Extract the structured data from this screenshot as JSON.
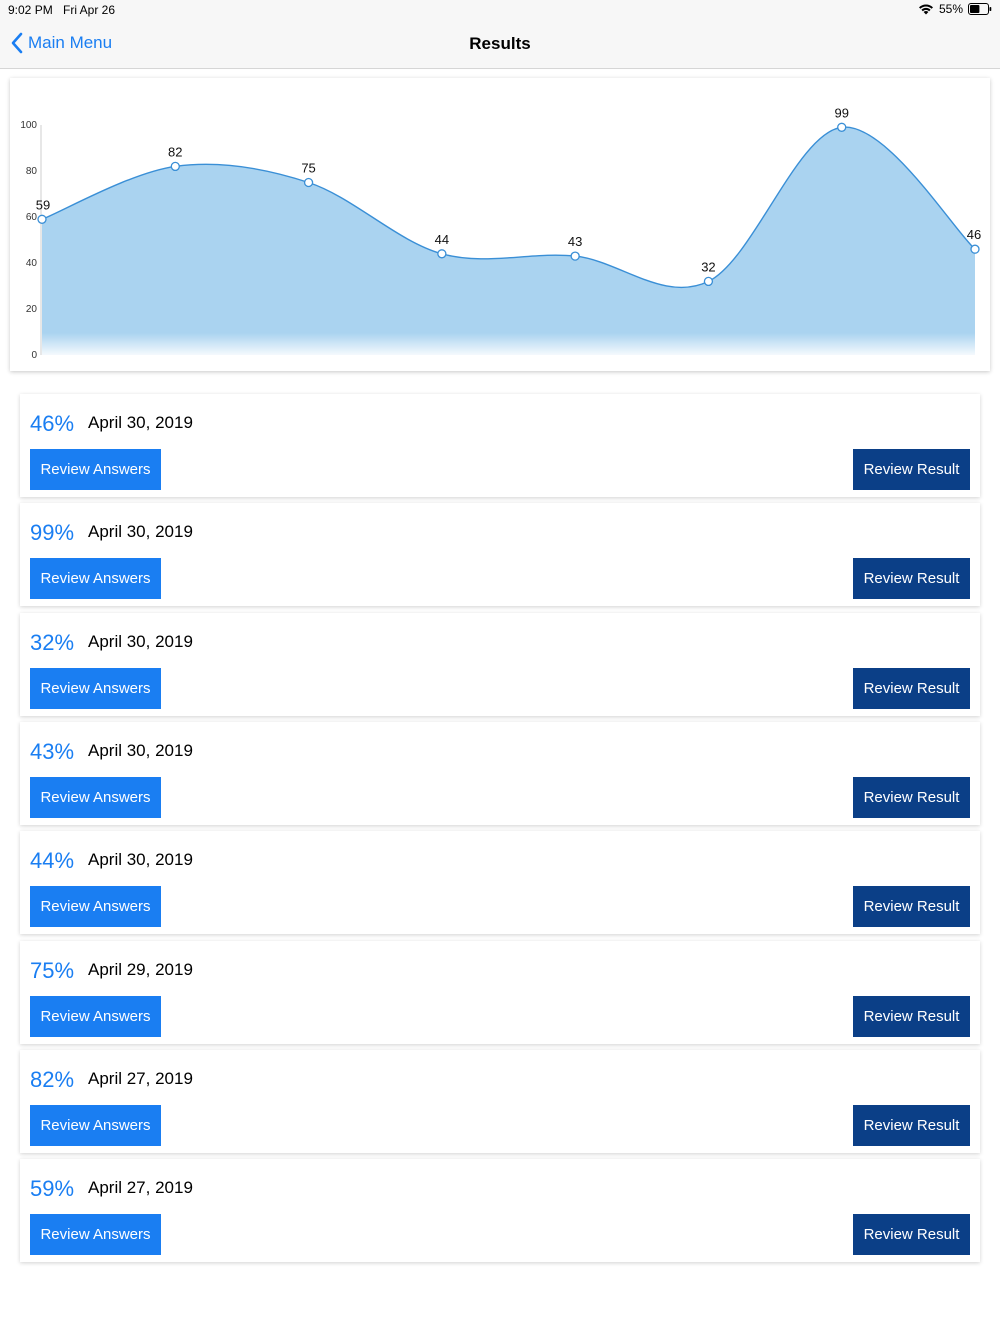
{
  "status_bar": {
    "time": "9:02 PM",
    "date": "Fri Apr 26",
    "battery": "55%",
    "battery_level": 0.55
  },
  "nav": {
    "back_label": "Main Menu",
    "title": "Results"
  },
  "colors": {
    "accent": "#1a7ef2",
    "dark_button": "#0b3f87",
    "chart_line": "#3a8fd6",
    "chart_fill": "#aad3f0"
  },
  "chart_data": {
    "type": "area",
    "title": "",
    "xlabel": "",
    "ylabel": "",
    "ylim": [
      0,
      100
    ],
    "yticks": [
      0,
      20,
      40,
      60,
      80,
      100
    ],
    "values": [
      59,
      82,
      75,
      44,
      43,
      32,
      99,
      46
    ],
    "data_labels": [
      "59",
      "82",
      "75",
      "44",
      "43",
      "32",
      "99",
      "46"
    ],
    "smooth": true,
    "grid": false,
    "legend": "none"
  },
  "results": [
    {
      "score": "46%",
      "date": "April 30, 2019",
      "answers_label": "Review Answers",
      "result_label": "Review Result"
    },
    {
      "score": "99%",
      "date": "April 30, 2019",
      "answers_label": "Review Answers",
      "result_label": "Review Result"
    },
    {
      "score": "32%",
      "date": "April 30, 2019",
      "answers_label": "Review Answers",
      "result_label": "Review Result"
    },
    {
      "score": "43%",
      "date": "April 30, 2019",
      "answers_label": "Review Answers",
      "result_label": "Review Result"
    },
    {
      "score": "44%",
      "date": "April 30, 2019",
      "answers_label": "Review Answers",
      "result_label": "Review Result"
    },
    {
      "score": "75%",
      "date": "April 29, 2019",
      "answers_label": "Review Answers",
      "result_label": "Review Result"
    },
    {
      "score": "82%",
      "date": "April 27, 2019",
      "answers_label": "Review Answers",
      "result_label": "Review Result"
    },
    {
      "score": "59%",
      "date": "April 27, 2019",
      "answers_label": "Review Answers",
      "result_label": "Review Result"
    }
  ]
}
